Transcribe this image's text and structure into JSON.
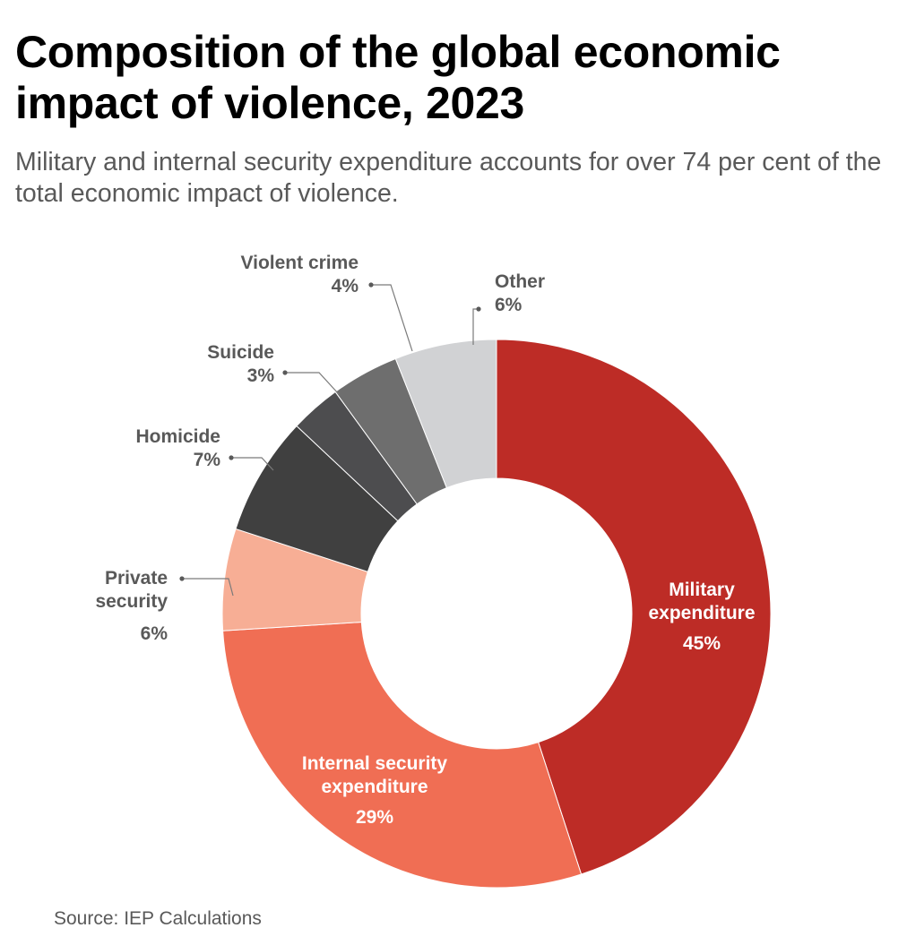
{
  "title": "Composition of the global economic impact of violence, 2023",
  "subtitle": "Military and internal security expenditure accounts for over 74 per cent of the total economic impact of violence.",
  "source": "Source: IEP Calculations",
  "chart_data": {
    "type": "pie",
    "variant": "donut",
    "slices": [
      {
        "label_lines": [
          "Military",
          "expenditure"
        ],
        "value": 45,
        "value_label": "45%",
        "color": "#bd2c26",
        "label_position": "inside",
        "label_color": "#ffffff"
      },
      {
        "label_lines": [
          "Internal security",
          "expenditure"
        ],
        "value": 29,
        "value_label": "29%",
        "color": "#f06e54",
        "label_position": "inside",
        "label_color": "#ffffff"
      },
      {
        "label_lines": [
          "Private",
          "security"
        ],
        "value": 6,
        "value_label": "6%",
        "color": "#f7ae95",
        "label_position": "outside",
        "label_color": "#595959"
      },
      {
        "label_lines": [
          "Homicide"
        ],
        "value": 7,
        "value_label": "7%",
        "color": "#404040",
        "label_position": "outside",
        "label_color": "#595959"
      },
      {
        "label_lines": [
          "Suicide"
        ],
        "value": 3,
        "value_label": "3%",
        "color": "#4d4d4f",
        "label_position": "outside",
        "label_color": "#595959"
      },
      {
        "label_lines": [
          "Violent crime"
        ],
        "value": 4,
        "value_label": "4%",
        "color": "#6e6e6e",
        "label_position": "outside",
        "label_color": "#595959"
      },
      {
        "label_lines": [
          "Other"
        ],
        "value": 6,
        "value_label": "6%",
        "color": "#d1d2d4",
        "label_position": "outside",
        "label_color": "#595959"
      }
    ],
    "start_angle_deg": 0,
    "direction": "clockwise",
    "legend": "none",
    "grid": false
  }
}
